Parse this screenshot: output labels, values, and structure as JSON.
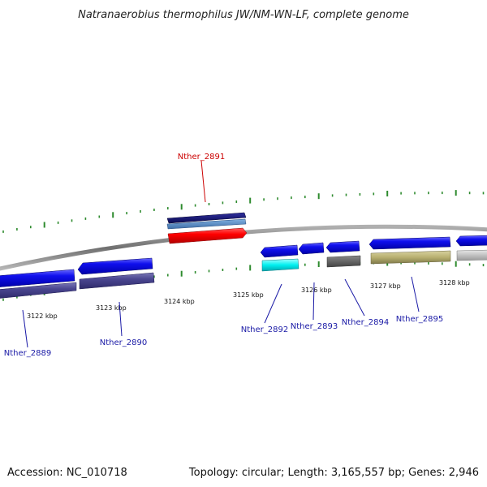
{
  "title": "Natranaerobius thermophilus JW/NM-WN-LF, complete genome",
  "footer": {
    "accession": "Accession: NC_010718",
    "summary": "Topology: circular; Length: 3,165,557 bp; Genes: 2,946"
  },
  "colors": {
    "backbone": "#8a8a8a",
    "tick": "#2e8b2e",
    "label_default": "#1a1aa6",
    "label_highlight": "#cc0000"
  },
  "scale_labels": [
    "3122 kbp",
    "3123 kbp",
    "3124 kbp",
    "3125 kbp",
    "3126 kbp",
    "3127 kbp",
    "3128 kbp"
  ],
  "genes": [
    {
      "label": "Nther_2889",
      "color": "label_default"
    },
    {
      "label": "Nther_2890",
      "color": "label_default"
    },
    {
      "label": "Nther_2891",
      "color": "label_highlight"
    },
    {
      "label": "Nther_2892",
      "color": "label_default"
    },
    {
      "label": "Nther_2893",
      "color": "label_default"
    },
    {
      "label": "Nther_2894",
      "color": "label_default"
    },
    {
      "label": "Nther_2895",
      "color": "label_default"
    }
  ]
}
